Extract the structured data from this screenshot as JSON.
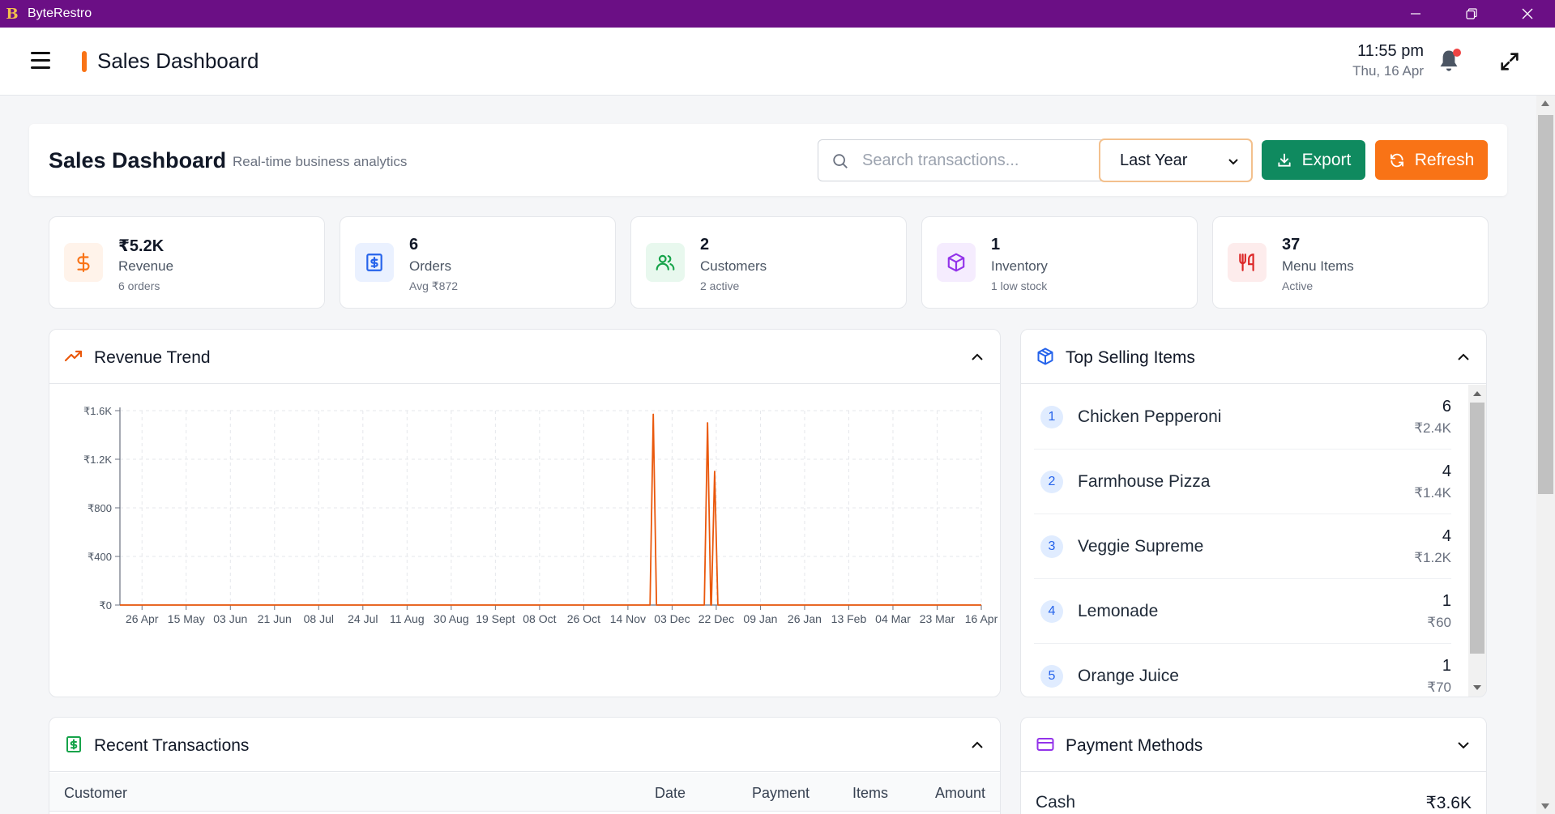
{
  "window": {
    "logo_glyph": "B",
    "app_name": "ByteRestro"
  },
  "header": {
    "title": "Sales Dashboard",
    "time": "11:55 pm",
    "date": "Thu, 16 Apr"
  },
  "toolbar": {
    "title": "Sales Dashboard",
    "subtitle": "Real-time business analytics",
    "search_placeholder": "Search transactions...",
    "period": "Last Year",
    "export_label": "Export",
    "refresh_label": "Refresh"
  },
  "stats": [
    {
      "icon": "dollar-icon",
      "value": "₹5.2K",
      "label": "Revenue",
      "sub": "6 orders",
      "color": "#f97316",
      "bg": "#fff3ea"
    },
    {
      "icon": "receipt-icon",
      "value": "6",
      "label": "Orders",
      "sub": "Avg ₹872",
      "color": "#2563eb",
      "bg": "#eaf1ff"
    },
    {
      "icon": "users-icon",
      "value": "2",
      "label": "Customers",
      "sub": "2 active",
      "color": "#16a34a",
      "bg": "#e8f8ee"
    },
    {
      "icon": "box-icon",
      "value": "1",
      "label": "Inventory",
      "sub": "1 low stock",
      "color": "#9333ea",
      "bg": "#f5ecfe"
    },
    {
      "icon": "utensils-icon",
      "value": "37",
      "label": "Menu Items",
      "sub": "Active",
      "color": "#dc2626",
      "bg": "#fdecec"
    }
  ],
  "revenue_trend": {
    "title": "Revenue Trend"
  },
  "chart_data": {
    "type": "line",
    "title": "Revenue Trend",
    "x_ticks": [
      "26 Apr",
      "15 May",
      "03 Jun",
      "21 Jun",
      "08 Jul",
      "24 Jul",
      "11 Aug",
      "30 Aug",
      "19 Sept",
      "08 Oct",
      "26 Oct",
      "14 Nov",
      "03 Dec",
      "22 Dec",
      "09 Jan",
      "26 Jan",
      "13 Feb",
      "04 Mar",
      "23 Mar",
      "16 Apr"
    ],
    "y_ticks": [
      "₹0",
      "₹400",
      "₹800",
      "₹1.2K",
      "₹1.6K"
    ],
    "ylim": [
      0,
      1600
    ],
    "x_range": [
      "2025-04-16",
      "2026-04-16"
    ],
    "grid": true,
    "series": [
      {
        "color": "#ea580c",
        "points": [
          {
            "x": "2025-11-28",
            "y": 1570
          },
          {
            "x": "2025-12-21",
            "y": 1500
          },
          {
            "x": "2025-12-24",
            "y": 1100
          }
        ]
      }
    ]
  },
  "top_selling": {
    "title": "Top Selling Items",
    "items": [
      {
        "rank": "1",
        "name": "Chicken Pepperoni",
        "qty": "6",
        "amount": "₹2.4K"
      },
      {
        "rank": "2",
        "name": "Farmhouse Pizza",
        "qty": "4",
        "amount": "₹1.4K"
      },
      {
        "rank": "3",
        "name": "Veggie Supreme",
        "qty": "4",
        "amount": "₹1.2K"
      },
      {
        "rank": "4",
        "name": "Lemonade",
        "qty": "1",
        "amount": "₹60"
      },
      {
        "rank": "5",
        "name": "Orange Juice",
        "qty": "1",
        "amount": "₹70"
      }
    ]
  },
  "transactions": {
    "title": "Recent Transactions",
    "columns": [
      "Customer",
      "Date",
      "Payment",
      "Items",
      "Amount"
    ]
  },
  "payment_methods": {
    "title": "Payment Methods",
    "rows": [
      {
        "method": "Cash",
        "amount": "₹3.6K"
      }
    ]
  }
}
